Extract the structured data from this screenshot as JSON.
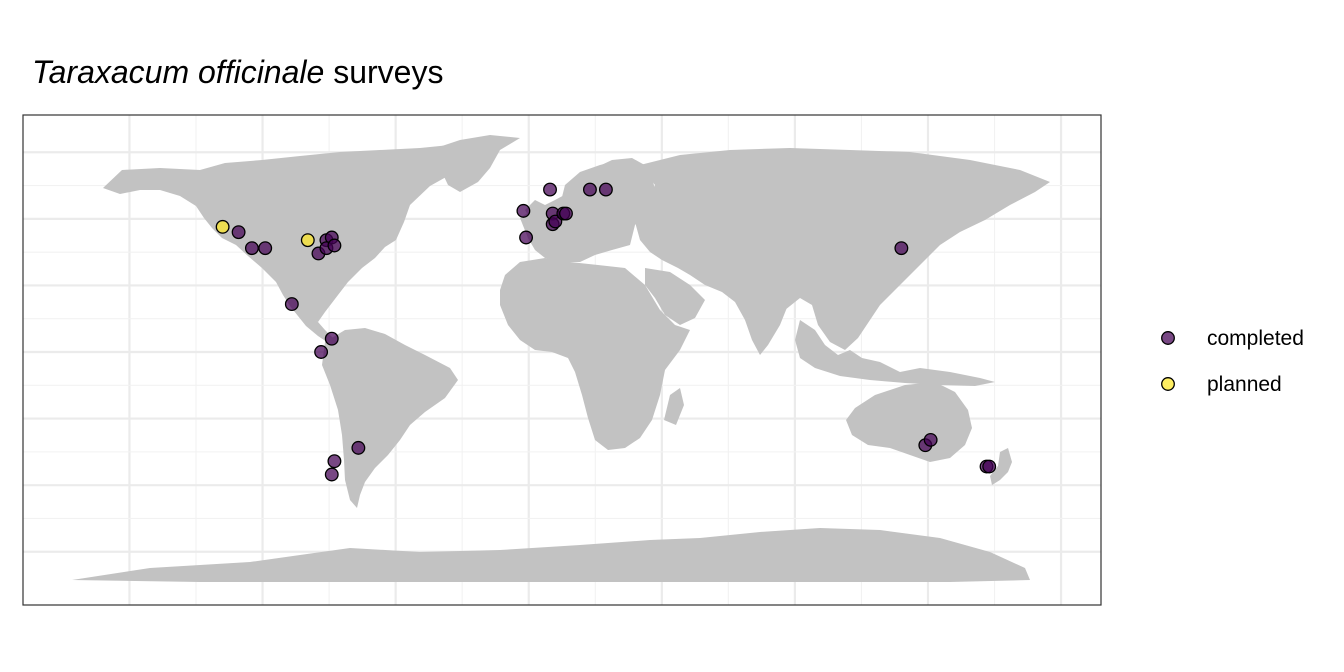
{
  "chart_data": {
    "type": "scatter",
    "title_italic": "Taraxacum officinale",
    "title_rest": " surveys",
    "legend": {
      "placement": "right",
      "entries": [
        {
          "label": "completed",
          "color": "#440154"
        },
        {
          "label": "planned",
          "color": "#FDE725"
        }
      ]
    },
    "xlim": [
      -190,
      215
    ],
    "ylim": [
      -95,
      89
    ],
    "grid": true,
    "points": [
      {
        "lon": -115,
        "lat": 47,
        "status": "planned"
      },
      {
        "lon": -83,
        "lat": 42,
        "status": "planned"
      },
      {
        "lon": -109,
        "lat": 45,
        "status": "completed"
      },
      {
        "lon": -104,
        "lat": 39,
        "status": "completed"
      },
      {
        "lon": -99,
        "lat": 39,
        "status": "completed"
      },
      {
        "lon": -89,
        "lat": 18,
        "status": "completed"
      },
      {
        "lon": -79,
        "lat": 37,
        "status": "completed"
      },
      {
        "lon": -76,
        "lat": 42,
        "status": "completed"
      },
      {
        "lon": -74,
        "lat": 43,
        "status": "completed"
      },
      {
        "lon": -76,
        "lat": 39,
        "status": "completed"
      },
      {
        "lon": -73,
        "lat": 40,
        "status": "completed"
      },
      {
        "lon": -74,
        "lat": 5,
        "status": "completed"
      },
      {
        "lon": -78,
        "lat": 0,
        "status": "completed"
      },
      {
        "lon": -64,
        "lat": -36,
        "status": "completed"
      },
      {
        "lon": -73,
        "lat": -41,
        "status": "completed"
      },
      {
        "lon": -74,
        "lat": -46,
        "status": "completed"
      },
      {
        "lon": -2,
        "lat": 53,
        "status": "completed"
      },
      {
        "lon": -1,
        "lat": 43,
        "status": "completed"
      },
      {
        "lon": 8,
        "lat": 61,
        "status": "completed"
      },
      {
        "lon": 9,
        "lat": 52,
        "status": "completed"
      },
      {
        "lon": 9,
        "lat": 48,
        "status": "completed"
      },
      {
        "lon": 10,
        "lat": 49,
        "status": "completed"
      },
      {
        "lon": 13,
        "lat": 52,
        "status": "completed"
      },
      {
        "lon": 14,
        "lat": 52,
        "status": "completed"
      },
      {
        "lon": 23,
        "lat": 61,
        "status": "completed"
      },
      {
        "lon": 29,
        "lat": 61,
        "status": "completed"
      },
      {
        "lon": 140,
        "lat": 39,
        "status": "completed"
      },
      {
        "lon": 149,
        "lat": -35,
        "status": "completed"
      },
      {
        "lon": 151,
        "lat": -33,
        "status": "completed"
      },
      {
        "lon": 172,
        "lat": -43,
        "status": "completed"
      },
      {
        "lon": 173,
        "lat": -43,
        "status": "completed"
      }
    ]
  }
}
